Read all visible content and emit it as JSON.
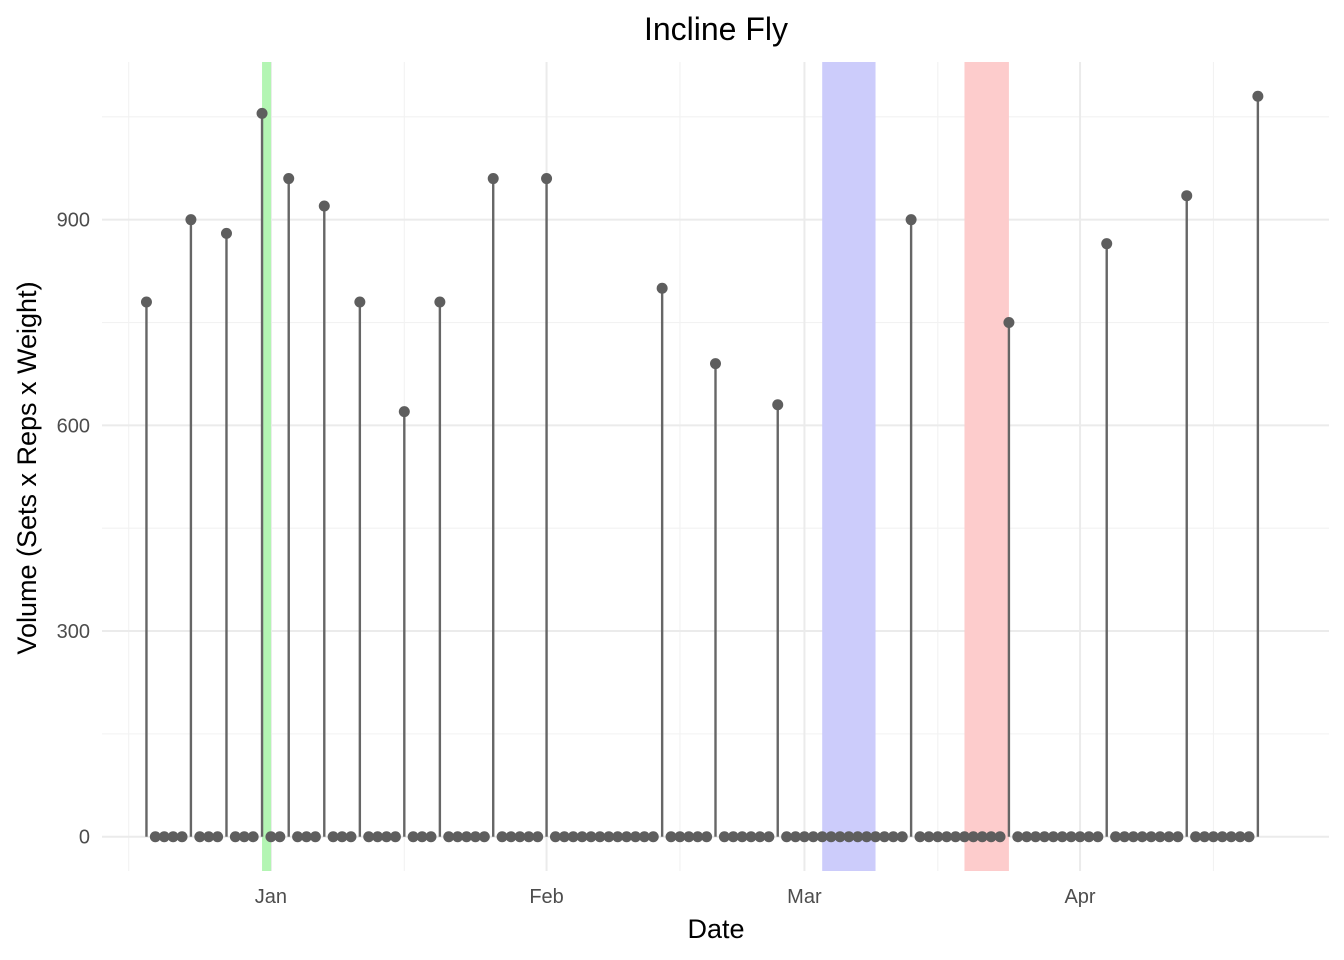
{
  "chart_data": {
    "type": "lollipop",
    "title": "Incline Fly",
    "xlabel": "Date",
    "ylabel": "Volume (Sets x Reps x Weight)",
    "grid": true,
    "x_ticks": [
      {
        "date": "2024-01-01",
        "label": "Jan"
      },
      {
        "date": "2024-02-01",
        "label": "Feb"
      },
      {
        "date": "2024-03-01",
        "label": "Mar"
      },
      {
        "date": "2024-04-01",
        "label": "Apr"
      }
    ],
    "y_ticks": [
      0,
      300,
      600,
      900
    ],
    "y_minor_ticks": [
      150,
      450,
      750,
      1050
    ],
    "x_minor_ticks": [
      "2023-12-16",
      "2024-01-16",
      "2024-02-16",
      "2024-03-16",
      "2024-04-16"
    ],
    "xlim": [
      "2023-12-13",
      "2024-04-29"
    ],
    "ylim": [
      -50,
      1130
    ],
    "highlights": [
      {
        "start": "2023-12-31",
        "end": "2024-01-01",
        "color": "#b3f5b3"
      },
      {
        "start": "2024-03-03",
        "end": "2024-03-09",
        "color": "#ccccfb"
      },
      {
        "start": "2024-03-19",
        "end": "2024-03-24",
        "color": "#fdcccc"
      }
    ],
    "series": [
      {
        "points": [
          [
            "2023-12-18",
            780
          ],
          [
            "2023-12-19",
            0
          ],
          [
            "2023-12-20",
            0
          ],
          [
            "2023-12-21",
            0
          ],
          [
            "2023-12-22",
            0
          ],
          [
            "2023-12-23",
            900
          ],
          [
            "2023-12-24",
            0
          ],
          [
            "2023-12-25",
            0
          ],
          [
            "2023-12-26",
            0
          ],
          [
            "2023-12-27",
            880
          ],
          [
            "2023-12-28",
            0
          ],
          [
            "2023-12-29",
            0
          ],
          [
            "2023-12-30",
            0
          ],
          [
            "2023-12-31",
            1055
          ],
          [
            "2024-01-01",
            0
          ],
          [
            "2024-01-02",
            0
          ],
          [
            "2024-01-03",
            960
          ],
          [
            "2024-01-04",
            0
          ],
          [
            "2024-01-05",
            0
          ],
          [
            "2024-01-06",
            0
          ],
          [
            "2024-01-07",
            920
          ],
          [
            "2024-01-08",
            0
          ],
          [
            "2024-01-09",
            0
          ],
          [
            "2024-01-10",
            0
          ],
          [
            "2024-01-11",
            780
          ],
          [
            "2024-01-12",
            0
          ],
          [
            "2024-01-13",
            0
          ],
          [
            "2024-01-14",
            0
          ],
          [
            "2024-01-15",
            0
          ],
          [
            "2024-01-16",
            620
          ],
          [
            "2024-01-17",
            0
          ],
          [
            "2024-01-18",
            0
          ],
          [
            "2024-01-19",
            0
          ],
          [
            "2024-01-20",
            780
          ],
          [
            "2024-01-21",
            0
          ],
          [
            "2024-01-22",
            0
          ],
          [
            "2024-01-23",
            0
          ],
          [
            "2024-01-24",
            0
          ],
          [
            "2024-01-25",
            0
          ],
          [
            "2024-01-26",
            960
          ],
          [
            "2024-01-27",
            0
          ],
          [
            "2024-01-28",
            0
          ],
          [
            "2024-01-29",
            0
          ],
          [
            "2024-01-30",
            0
          ],
          [
            "2024-01-31",
            0
          ],
          [
            "2024-02-01",
            960
          ],
          [
            "2024-02-02",
            0
          ],
          [
            "2024-02-03",
            0
          ],
          [
            "2024-02-04",
            0
          ],
          [
            "2024-02-05",
            0
          ],
          [
            "2024-02-06",
            0
          ],
          [
            "2024-02-07",
            0
          ],
          [
            "2024-02-08",
            0
          ],
          [
            "2024-02-09",
            0
          ],
          [
            "2024-02-10",
            0
          ],
          [
            "2024-02-11",
            0
          ],
          [
            "2024-02-12",
            0
          ],
          [
            "2024-02-13",
            0
          ],
          [
            "2024-02-14",
            800
          ],
          [
            "2024-02-15",
            0
          ],
          [
            "2024-02-16",
            0
          ],
          [
            "2024-02-17",
            0
          ],
          [
            "2024-02-18",
            0
          ],
          [
            "2024-02-19",
            0
          ],
          [
            "2024-02-20",
            690
          ],
          [
            "2024-02-21",
            0
          ],
          [
            "2024-02-22",
            0
          ],
          [
            "2024-02-23",
            0
          ],
          [
            "2024-02-24",
            0
          ],
          [
            "2024-02-25",
            0
          ],
          [
            "2024-02-26",
            0
          ],
          [
            "2024-02-27",
            630
          ],
          [
            "2024-02-28",
            0
          ],
          [
            "2024-02-29",
            0
          ],
          [
            "2024-03-01",
            0
          ],
          [
            "2024-03-02",
            0
          ],
          [
            "2024-03-03",
            0
          ],
          [
            "2024-03-04",
            0
          ],
          [
            "2024-03-05",
            0
          ],
          [
            "2024-03-06",
            0
          ],
          [
            "2024-03-07",
            0
          ],
          [
            "2024-03-08",
            0
          ],
          [
            "2024-03-09",
            0
          ],
          [
            "2024-03-10",
            0
          ],
          [
            "2024-03-11",
            0
          ],
          [
            "2024-03-12",
            0
          ],
          [
            "2024-03-13",
            900
          ],
          [
            "2024-03-14",
            0
          ],
          [
            "2024-03-15",
            0
          ],
          [
            "2024-03-16",
            0
          ],
          [
            "2024-03-17",
            0
          ],
          [
            "2024-03-18",
            0
          ],
          [
            "2024-03-19",
            0
          ],
          [
            "2024-03-20",
            0
          ],
          [
            "2024-03-21",
            0
          ],
          [
            "2024-03-22",
            0
          ],
          [
            "2024-03-23",
            0
          ],
          [
            "2024-03-24",
            750
          ],
          [
            "2024-03-25",
            0
          ],
          [
            "2024-03-26",
            0
          ],
          [
            "2024-03-27",
            0
          ],
          [
            "2024-03-28",
            0
          ],
          [
            "2024-03-29",
            0
          ],
          [
            "2024-03-30",
            0
          ],
          [
            "2024-03-31",
            0
          ],
          [
            "2024-04-01",
            0
          ],
          [
            "2024-04-02",
            0
          ],
          [
            "2024-04-03",
            0
          ],
          [
            "2024-04-04",
            865
          ],
          [
            "2024-04-05",
            0
          ],
          [
            "2024-04-06",
            0
          ],
          [
            "2024-04-07",
            0
          ],
          [
            "2024-04-08",
            0
          ],
          [
            "2024-04-09",
            0
          ],
          [
            "2024-04-10",
            0
          ],
          [
            "2024-04-11",
            0
          ],
          [
            "2024-04-12",
            0
          ],
          [
            "2024-04-13",
            935
          ],
          [
            "2024-04-14",
            0
          ],
          [
            "2024-04-15",
            0
          ],
          [
            "2024-04-16",
            0
          ],
          [
            "2024-04-17",
            0
          ],
          [
            "2024-04-18",
            0
          ],
          [
            "2024-04-19",
            0
          ],
          [
            "2024-04-20",
            0
          ],
          [
            "2024-04-21",
            1080
          ]
        ]
      }
    ]
  }
}
